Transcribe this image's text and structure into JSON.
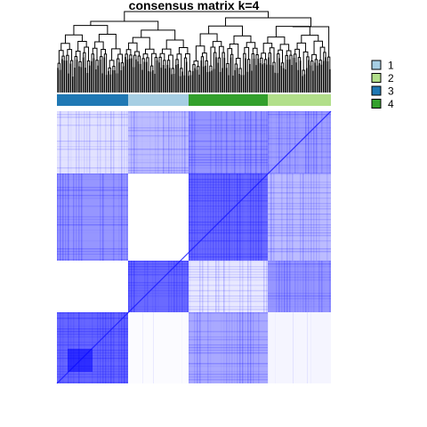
{
  "chart_data": {
    "type": "heatmap",
    "title": "consensus matrix k=4",
    "legend": {
      "placement": "top-right",
      "entries": [
        {
          "label": "1",
          "color": "#a6cee3"
        },
        {
          "label": "2",
          "color": "#b2df8a"
        },
        {
          "label": "3",
          "color": "#1f78b4"
        },
        {
          "label": "4",
          "color": "#33a02c"
        }
      ]
    },
    "value_range": [
      0,
      1
    ],
    "color_low": "#ffffff",
    "color_high": "#0000ff",
    "column_order_classes": [
      "3",
      "1",
      "4",
      "2"
    ],
    "row_order_classes": [
      "1",
      "4",
      "3",
      "2"
    ],
    "block_sizes": {
      "3": 0.26,
      "1": 0.22,
      "4": 0.29,
      "2": 0.23
    },
    "row_block_heights": {
      "1": 0.23,
      "4": 0.32,
      "3": 0.19,
      "2": 0.26
    },
    "block_consensus": [
      {
        "row": "1",
        "col": "3",
        "value": 0.15
      },
      {
        "row": "1",
        "col": "1",
        "value": 0.35
      },
      {
        "row": "1",
        "col": "4",
        "value": 0.55
      },
      {
        "row": "1",
        "col": "2",
        "value": 0.5
      },
      {
        "row": "4",
        "col": "3",
        "value": 0.55
      },
      {
        "row": "4",
        "col": "1",
        "value": 0.0
      },
      {
        "row": "4",
        "col": "4",
        "value": 0.78
      },
      {
        "row": "4",
        "col": "2",
        "value": 0.35
      },
      {
        "row": "3",
        "col": "3",
        "value": 0.0
      },
      {
        "row": "3",
        "col": "1",
        "value": 0.78
      },
      {
        "row": "3",
        "col": "4",
        "value": 0.12
      },
      {
        "row": "3",
        "col": "2",
        "value": 0.55
      },
      {
        "row": "2",
        "col": "3",
        "value": 0.8
      },
      {
        "row": "2",
        "col": "1",
        "value": 0.02
      },
      {
        "row": "2",
        "col": "4",
        "value": 0.45
      },
      {
        "row": "2",
        "col": "2",
        "value": 0.05
      }
    ],
    "dendrogram": true,
    "grid": false
  }
}
